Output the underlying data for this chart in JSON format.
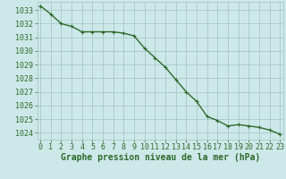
{
  "x": [
    0,
    1,
    2,
    3,
    4,
    5,
    6,
    7,
    8,
    9,
    10,
    11,
    12,
    13,
    14,
    15,
    16,
    17,
    18,
    19,
    20,
    21,
    22,
    23
  ],
  "y": [
    1033.3,
    1032.7,
    1032.0,
    1031.8,
    1031.4,
    1031.4,
    1031.4,
    1031.4,
    1031.3,
    1031.1,
    1030.2,
    1029.5,
    1028.8,
    1027.9,
    1027.0,
    1026.3,
    1025.2,
    1024.9,
    1024.5,
    1024.6,
    1024.5,
    1024.4,
    1024.2,
    1023.9
  ],
  "line_color": "#2d6a2d",
  "marker": "+",
  "marker_size": 3,
  "bg_color": "#cde8e8",
  "grid_color": "#a0c4c4",
  "xlabel": "Graphe pression niveau de la mer (hPa)",
  "xlabel_color": "#2d6a2d",
  "tick_color": "#2d6a2d",
  "ylim": [
    1023.5,
    1033.6
  ],
  "xlim": [
    -0.3,
    23.3
  ],
  "yticks": [
    1024,
    1025,
    1026,
    1027,
    1028,
    1029,
    1030,
    1031,
    1032,
    1033
  ],
  "xticks": [
    0,
    1,
    2,
    3,
    4,
    5,
    6,
    7,
    8,
    9,
    10,
    11,
    12,
    13,
    14,
    15,
    16,
    17,
    18,
    19,
    20,
    21,
    22,
    23
  ],
  "line_width": 1.0,
  "tick_fontsize": 6.0,
  "xlabel_fontsize": 7.0
}
